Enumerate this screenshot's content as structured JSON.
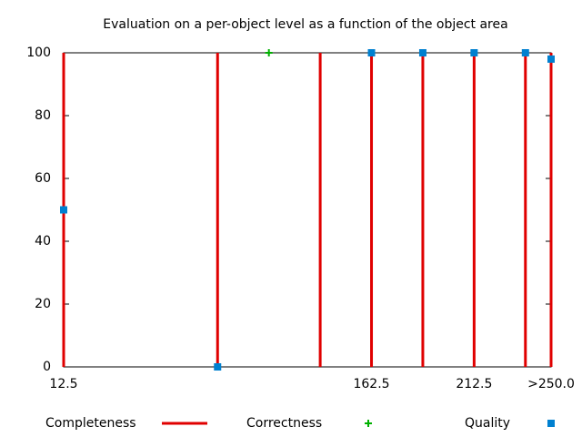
{
  "chart_data": {
    "type": "scatter",
    "title": "Evaluation on a per-object level as a function of the object area",
    "xlim": [
      12.5,
      250
    ],
    "xticks": [
      12.5,
      162.5,
      212.5,
      {
        "value": 250,
        "label": ">250.0"
      }
    ],
    "ylim": [
      0,
      100
    ],
    "yticks": [
      0,
      20,
      40,
      60,
      80,
      100
    ],
    "grid": false,
    "series": [
      {
        "name": "Completeness",
        "color": "#e00000",
        "style": "impulses",
        "x": [
          12.5,
          87.5,
          137.5,
          162.5,
          187.5,
          212.5,
          237.5,
          250
        ],
        "values": [
          100,
          100,
          100,
          100,
          100,
          100,
          100,
          100
        ]
      },
      {
        "name": "Correctness",
        "color": "#00b000",
        "style": "plus",
        "x": [
          112.5
        ],
        "values": [
          100
        ]
      },
      {
        "name": "Quality",
        "color": "#0080d0",
        "style": "square",
        "x": [
          12.5,
          87.5,
          162.5,
          187.5,
          212.5,
          237.5,
          250
        ],
        "values": [
          50,
          0,
          100,
          100,
          100,
          100,
          98
        ]
      }
    ]
  }
}
